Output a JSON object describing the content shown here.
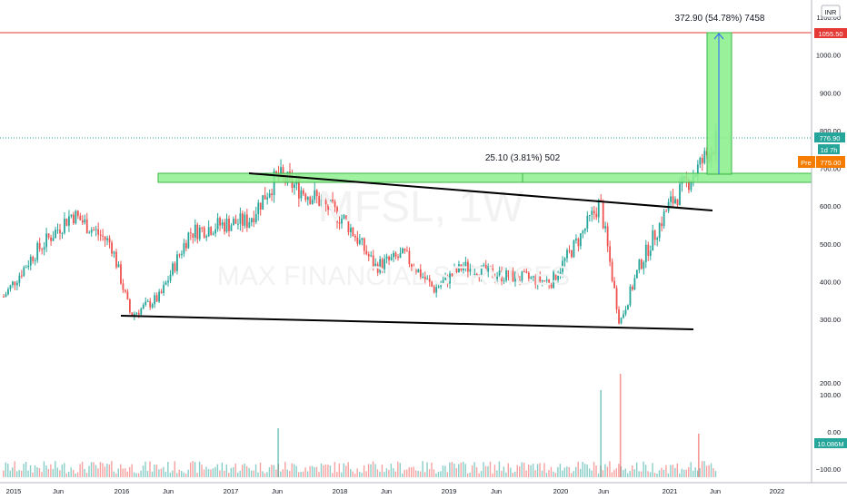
{
  "chart_data": {
    "type": "candlestick",
    "timeframe": "1W",
    "currency": "INR",
    "watermark": {
      "ticker": "MFSL, 1W",
      "name": "MAX FINANCIAL SERVICES"
    },
    "price_axis": {
      "ticks": [
        "1100.00",
        "1000.00",
        "900.00",
        "800.00",
        "700.00",
        "600.00",
        "500.00",
        "400.00",
        "300.00",
        "200.00",
        "100.00",
        "0.00",
        "−100.00"
      ],
      "price_ticks": [
        1000,
        900,
        800,
        700,
        600,
        500,
        400,
        300
      ],
      "price_range": [
        264,
        1122
      ]
    },
    "time_axis": [
      "2015",
      "Jun",
      "2016",
      "Jun",
      "2017",
      "Jun",
      "2018",
      "Jun",
      "2019",
      "Jun",
      "2020",
      "Jun",
      "2021",
      "Jun",
      "2022"
    ],
    "labels": {
      "target": "1055.50",
      "last": "776.90",
      "countdown": "1d 7h",
      "pre_tag": "Pre",
      "pre_value": "775.00",
      "volume": "10.086M",
      "measure_top": "372.90 (54.78%) 7458",
      "measure_zone": "25.10 (3.81%) 502"
    },
    "levels": {
      "target": 1055.5,
      "last": 776.9,
      "zone_low": 673,
      "zone_high": 698,
      "pre": 775
    },
    "volume_axis": {
      "ticks": [
        200,
        100,
        0,
        -100
      ],
      "units": "M"
    },
    "volume_peaks": [
      {
        "date": "2017-05",
        "value": 90
      },
      {
        "date": "2020-04",
        "value": 190
      },
      {
        "date": "2020-02",
        "value": 160
      },
      {
        "date": "2020-12",
        "value": 80
      }
    ],
    "series": [
      {
        "date": "2015-01",
        "close": 360
      },
      {
        "date": "2015-04",
        "close": 470
      },
      {
        "date": "2015-08",
        "close": 580
      },
      {
        "date": "2015-12",
        "close": 500
      },
      {
        "date": "2016-02",
        "close": 310
      },
      {
        "date": "2016-05",
        "close": 360
      },
      {
        "date": "2016-08",
        "close": 530
      },
      {
        "date": "2016-11",
        "close": 550
      },
      {
        "date": "2017-02",
        "close": 560
      },
      {
        "date": "2017-05",
        "close": 680
      },
      {
        "date": "2017-09",
        "close": 620
      },
      {
        "date": "2017-12",
        "close": 560
      },
      {
        "date": "2018-03",
        "close": 440
      },
      {
        "date": "2018-06",
        "close": 470
      },
      {
        "date": "2018-09",
        "close": 380
      },
      {
        "date": "2018-12",
        "close": 440
      },
      {
        "date": "2019-03",
        "close": 420
      },
      {
        "date": "2019-06",
        "close": 410
      },
      {
        "date": "2019-09",
        "close": 400
      },
      {
        "date": "2019-12",
        "close": 520
      },
      {
        "date": "2020-02",
        "close": 610
      },
      {
        "date": "2020-04",
        "close": 290
      },
      {
        "date": "2020-06",
        "close": 440
      },
      {
        "date": "2020-09",
        "close": 600
      },
      {
        "date": "2020-12",
        "close": 700
      },
      {
        "date": "2021-02",
        "close": 777
      }
    ],
    "trendlines": [
      {
        "from": {
          "date": "2017-04",
          "price": 683
        },
        "to": {
          "date": "2021-03",
          "price": 589
        }
      },
      {
        "from": {
          "date": "2016-01",
          "price": 305
        },
        "to": {
          "date": "2021-04",
          "price": 273
        }
      }
    ]
  },
  "colors": {
    "up": "#26a69a",
    "down": "#ef5350",
    "target_line": "#e53935",
    "last_price": "#26a69a",
    "zone_fill": "#8ef08e",
    "zone_stroke": "#3cb54a",
    "pre_tag": "#f57c00",
    "grid": "#f0f3fa",
    "axis_text": "#131722"
  }
}
